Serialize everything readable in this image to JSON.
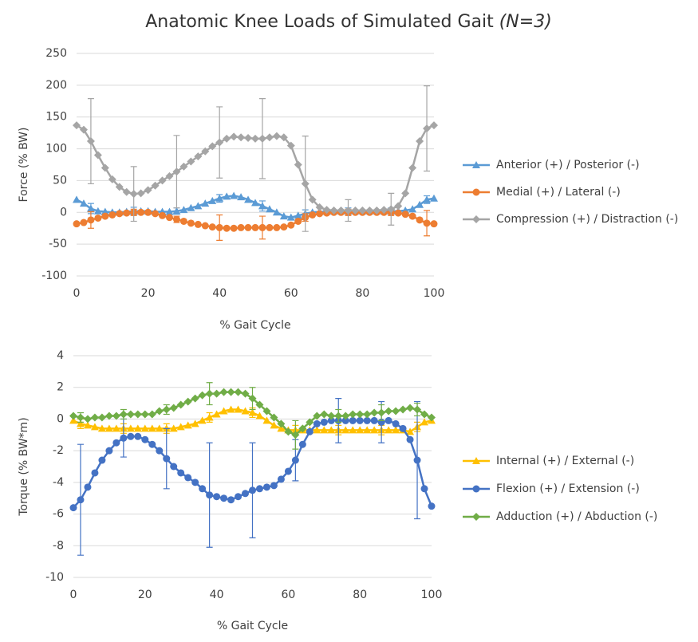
{
  "title": "Anatomic Knee Loads of Simulated Gait",
  "title_italic": "(N=3)",
  "chart_data": [
    {
      "type": "line",
      "xlabel": "% Gait Cycle",
      "ylabel": "Force (% BW)",
      "xlim": [
        0,
        100
      ],
      "xticks": [
        0,
        20,
        40,
        60,
        80,
        100
      ],
      "ylim": [
        -100,
        250
      ],
      "yticks": [
        -100,
        -50,
        0,
        50,
        100,
        150,
        200,
        250
      ],
      "grid": true,
      "legend": "right",
      "x": [
        0,
        2,
        4,
        6,
        8,
        10,
        12,
        14,
        16,
        18,
        20,
        22,
        24,
        26,
        28,
        30,
        32,
        34,
        36,
        38,
        40,
        42,
        44,
        46,
        48,
        50,
        52,
        54,
        56,
        58,
        60,
        62,
        64,
        66,
        68,
        70,
        72,
        74,
        76,
        78,
        80,
        82,
        84,
        86,
        88,
        90,
        92,
        94,
        96,
        98,
        100
      ],
      "series": [
        {
          "name": "Anterior (+) / Posterior (-)",
          "color": "#5b9bd5",
          "marker": "triangle",
          "values": [
            20,
            14,
            6,
            2,
            1,
            0,
            0,
            1,
            2,
            2,
            2,
            1,
            1,
            1,
            2,
            4,
            7,
            10,
            14,
            18,
            22,
            25,
            26,
            24,
            20,
            15,
            10,
            5,
            0,
            -6,
            -8,
            -5,
            -2,
            0,
            1,
            1,
            2,
            2,
            2,
            2,
            2,
            2,
            2,
            2,
            2,
            2,
            3,
            5,
            12,
            20,
            22
          ],
          "errors": [
            null,
            null,
            8,
            null,
            null,
            null,
            null,
            null,
            6,
            null,
            null,
            null,
            null,
            null,
            5,
            null,
            null,
            null,
            null,
            null,
            6,
            null,
            null,
            null,
            null,
            null,
            8,
            null,
            null,
            null,
            null,
            null,
            6,
            null,
            null,
            null,
            null,
            null,
            5,
            null,
            null,
            null,
            null,
            null,
            5,
            null,
            null,
            null,
            null,
            6,
            null
          ]
        },
        {
          "name": "Medial (+) / Lateral (-)",
          "color": "#ed7d31",
          "marker": "circle",
          "values": [
            -18,
            -16,
            -12,
            -9,
            -6,
            -4,
            -2,
            -1,
            0,
            0,
            0,
            -2,
            -5,
            -8,
            -11,
            -14,
            -17,
            -19,
            -21,
            -23,
            -24,
            -25,
            -25,
            -24,
            -24,
            -24,
            -24,
            -24,
            -24,
            -23,
            -20,
            -14,
            -8,
            -4,
            -2,
            -1,
            0,
            0,
            0,
            0,
            0,
            0,
            0,
            0,
            0,
            -1,
            -3,
            -6,
            -12,
            -17,
            -18
          ],
          "errors": [
            null,
            null,
            13,
            null,
            null,
            null,
            null,
            null,
            5,
            null,
            null,
            null,
            null,
            null,
            5,
            null,
            null,
            null,
            null,
            null,
            20,
            null,
            null,
            null,
            null,
            null,
            18,
            null,
            null,
            null,
            null,
            null,
            6,
            null,
            null,
            null,
            null,
            null,
            5,
            null,
            null,
            null,
            null,
            null,
            5,
            null,
            null,
            null,
            null,
            20,
            null
          ]
        },
        {
          "name": "Compression (+) / Distraction (-)",
          "color": "#a5a5a5",
          "marker": "diamond",
          "values": [
            137,
            130,
            112,
            90,
            70,
            52,
            40,
            32,
            29,
            30,
            35,
            42,
            50,
            57,
            64,
            72,
            80,
            88,
            96,
            104,
            110,
            116,
            119,
            118,
            117,
            116,
            116,
            118,
            120,
            118,
            105,
            75,
            45,
            20,
            8,
            4,
            3,
            3,
            3,
            3,
            3,
            3,
            3,
            4,
            5,
            10,
            30,
            70,
            112,
            132,
            137
          ],
          "errors": [
            null,
            null,
            67,
            null,
            null,
            null,
            null,
            null,
            43,
            null,
            null,
            null,
            null,
            null,
            57,
            null,
            null,
            null,
            null,
            null,
            56,
            null,
            null,
            null,
            null,
            null,
            63,
            null,
            null,
            null,
            null,
            null,
            75,
            null,
            null,
            null,
            null,
            null,
            17,
            null,
            null,
            null,
            null,
            null,
            25,
            null,
            null,
            null,
            null,
            67,
            null
          ]
        }
      ]
    },
    {
      "type": "line",
      "xlabel": "% Gait Cycle",
      "ylabel": "Torque (% BW*m)",
      "xlim": [
        0,
        100
      ],
      "xticks": [
        0,
        20,
        40,
        60,
        80,
        100
      ],
      "ylim": [
        -10,
        4
      ],
      "yticks": [
        -10,
        -8,
        -6,
        -4,
        -2,
        0,
        2,
        4
      ],
      "grid": true,
      "legend": "right",
      "x": [
        0,
        2,
        4,
        6,
        8,
        10,
        12,
        14,
        16,
        18,
        20,
        22,
        24,
        26,
        28,
        30,
        32,
        34,
        36,
        38,
        40,
        42,
        44,
        46,
        48,
        50,
        52,
        54,
        56,
        58,
        60,
        62,
        64,
        66,
        68,
        70,
        72,
        74,
        76,
        78,
        80,
        82,
        84,
        86,
        88,
        90,
        92,
        94,
        96,
        98,
        100
      ],
      "series": [
        {
          "name": "Internal (+) / External (-)",
          "color": "#ffc000",
          "marker": "triangle",
          "values": [
            -0.1,
            -0.3,
            -0.4,
            -0.5,
            -0.6,
            -0.6,
            -0.6,
            -0.6,
            -0.6,
            -0.6,
            -0.6,
            -0.6,
            -0.6,
            -0.6,
            -0.6,
            -0.5,
            -0.4,
            -0.3,
            -0.1,
            0.1,
            0.3,
            0.5,
            0.6,
            0.6,
            0.5,
            0.4,
            0.2,
            -0.1,
            -0.4,
            -0.6,
            -0.7,
            -0.7,
            -0.7,
            -0.7,
            -0.7,
            -0.7,
            -0.7,
            -0.7,
            -0.7,
            -0.7,
            -0.7,
            -0.7,
            -0.7,
            -0.7,
            -0.7,
            -0.7,
            -0.7,
            -0.8,
            -0.5,
            -0.2,
            -0.1
          ],
          "errors": [
            null,
            0.3,
            null,
            null,
            null,
            null,
            null,
            0.3,
            null,
            null,
            null,
            null,
            null,
            0.3,
            null,
            null,
            null,
            null,
            null,
            0.3,
            null,
            null,
            null,
            null,
            null,
            0.3,
            null,
            null,
            null,
            null,
            null,
            0.3,
            null,
            null,
            null,
            null,
            null,
            0.3,
            null,
            null,
            null,
            null,
            null,
            0.3,
            null,
            null,
            null,
            null,
            0.3,
            null,
            null
          ]
        },
        {
          "name": "Flexion (+) / Extension (-)",
          "color": "#4472c4",
          "marker": "circle",
          "values": [
            -5.6,
            -5.1,
            -4.3,
            -3.4,
            -2.6,
            -2.0,
            -1.5,
            -1.2,
            -1.1,
            -1.1,
            -1.3,
            -1.6,
            -2.0,
            -2.5,
            -3.0,
            -3.4,
            -3.7,
            -4.0,
            -4.4,
            -4.8,
            -4.9,
            -5.0,
            -5.1,
            -4.9,
            -4.7,
            -4.5,
            -4.4,
            -4.3,
            -4.2,
            -3.8,
            -3.3,
            -2.6,
            -1.6,
            -0.8,
            -0.3,
            -0.2,
            -0.1,
            -0.1,
            -0.1,
            -0.1,
            -0.1,
            -0.1,
            -0.1,
            -0.2,
            -0.1,
            -0.3,
            -0.6,
            -1.3,
            -2.6,
            -4.4,
            -5.5
          ],
          "errors": [
            null,
            3.5,
            null,
            null,
            null,
            null,
            null,
            1.2,
            null,
            null,
            null,
            null,
            null,
            1.9,
            null,
            null,
            null,
            null,
            null,
            3.3,
            null,
            null,
            null,
            null,
            null,
            3.0,
            null,
            null,
            null,
            null,
            null,
            1.3,
            null,
            null,
            null,
            null,
            null,
            1.4,
            null,
            null,
            null,
            null,
            null,
            1.3,
            null,
            null,
            null,
            null,
            3.7,
            null,
            null
          ]
        },
        {
          "name": "Adduction (+) / Abduction (-)",
          "color": "#70ad47",
          "marker": "diamond",
          "values": [
            0.2,
            0.1,
            0.0,
            0.1,
            0.1,
            0.2,
            0.2,
            0.3,
            0.3,
            0.3,
            0.3,
            0.3,
            0.5,
            0.6,
            0.7,
            0.9,
            1.1,
            1.3,
            1.5,
            1.6,
            1.6,
            1.7,
            1.7,
            1.7,
            1.6,
            1.3,
            0.9,
            0.5,
            0.1,
            -0.3,
            -0.8,
            -1.0,
            -0.6,
            -0.2,
            0.2,
            0.3,
            0.2,
            0.2,
            0.2,
            0.3,
            0.3,
            0.3,
            0.4,
            0.4,
            0.5,
            0.5,
            0.6,
            0.7,
            0.6,
            0.3,
            0.1
          ],
          "errors": [
            null,
            0.3,
            null,
            null,
            null,
            null,
            null,
            0.3,
            null,
            null,
            null,
            null,
            null,
            0.3,
            null,
            null,
            null,
            null,
            null,
            0.7,
            null,
            null,
            null,
            null,
            null,
            0.7,
            null,
            null,
            null,
            null,
            null,
            0.9,
            null,
            null,
            null,
            null,
            null,
            0.4,
            null,
            null,
            null,
            null,
            null,
            0.5,
            null,
            null,
            null,
            null,
            0.4,
            null,
            null
          ]
        }
      ]
    }
  ]
}
